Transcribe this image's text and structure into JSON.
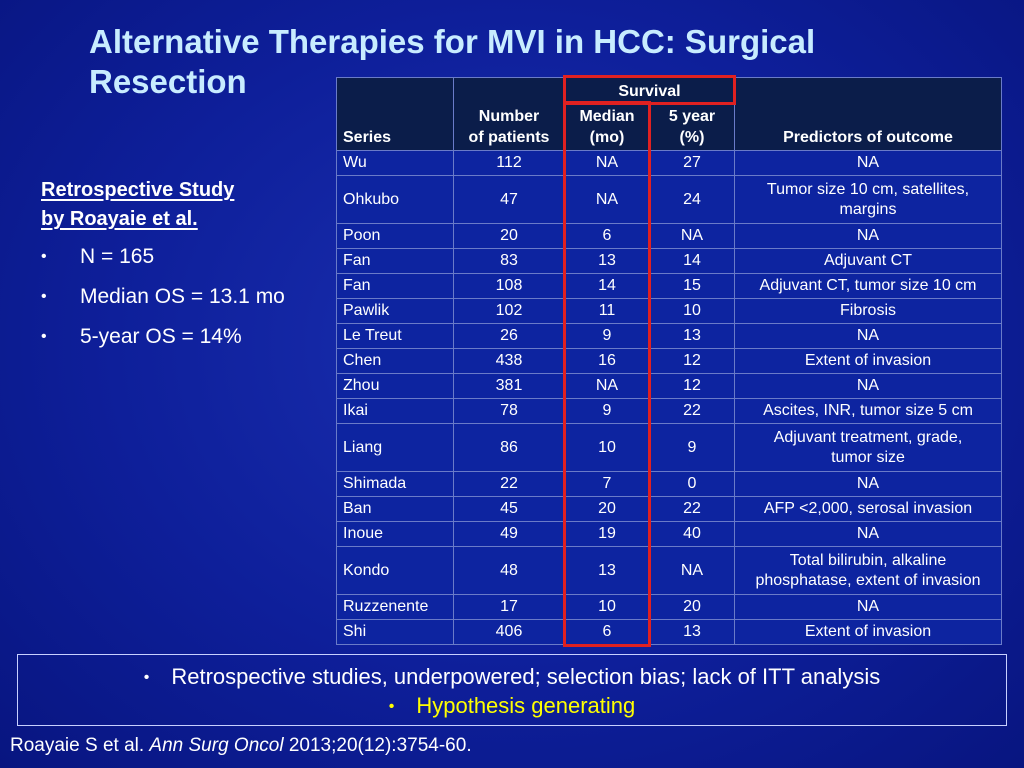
{
  "title": "Alternative Therapies for MVI in HCC: Surgical Resection",
  "study": {
    "heading_line1": "Retrospective Study",
    "heading_line2": "by Roayaie et al.",
    "bullets": [
      "N = 165",
      "Median OS = 13.1 mo",
      "5-year OS = 14%"
    ]
  },
  "table": {
    "headers": {
      "series": "Series",
      "patients_line1": "Number",
      "patients_line2": "of patients",
      "survival": "Survival",
      "median_line1": "Median",
      "median_line2": "(mo)",
      "five_year_line1": "5 year",
      "five_year_line2": "(%)",
      "predictors": "Predictors of outcome"
    },
    "rows": [
      {
        "series": "Wu",
        "patients": "112",
        "median": "NA",
        "five_year": "27",
        "pred1": "NA",
        "pred2": ""
      },
      {
        "series": "Ohkubo",
        "patients": "47",
        "median": "NA",
        "five_year": "24",
        "pred1": "Tumor size 10 cm, satellites,",
        "pred2": "margins"
      },
      {
        "series": "Poon",
        "patients": "20",
        "median": "6",
        "five_year": "NA",
        "pred1": "NA",
        "pred2": ""
      },
      {
        "series": "Fan",
        "patients": "83",
        "median": "13",
        "five_year": "14",
        "pred1": "Adjuvant CT",
        "pred2": ""
      },
      {
        "series": "Fan",
        "patients": "108",
        "median": "14",
        "five_year": "15",
        "pred1": "Adjuvant CT, tumor size 10 cm",
        "pred2": ""
      },
      {
        "series": "Pawlik",
        "patients": "102",
        "median": "11",
        "five_year": "10",
        "pred1": "Fibrosis",
        "pred2": ""
      },
      {
        "series": "Le Treut",
        "patients": "26",
        "median": "9",
        "five_year": "13",
        "pred1": "NA",
        "pred2": ""
      },
      {
        "series": "Chen",
        "patients": "438",
        "median": "16",
        "five_year": "12",
        "pred1": "Extent of invasion",
        "pred2": ""
      },
      {
        "series": "Zhou",
        "patients": "381",
        "median": "NA",
        "five_year": "12",
        "pred1": "NA",
        "pred2": ""
      },
      {
        "series": "Ikai",
        "patients": "78",
        "median": "9",
        "five_year": "22",
        "pred1": "Ascites, INR, tumor size 5 cm",
        "pred2": ""
      },
      {
        "series": "Liang",
        "patients": "86",
        "median": "10",
        "five_year": "9",
        "pred1": "Adjuvant treatment, grade,",
        "pred2": "tumor size"
      },
      {
        "series": "Shimada",
        "patients": "22",
        "median": "7",
        "five_year": "0",
        "pred1": "NA",
        "pred2": ""
      },
      {
        "series": "Ban",
        "patients": "45",
        "median": "20",
        "five_year": "22",
        "pred1": "AFP <2,000, serosal invasion",
        "pred2": ""
      },
      {
        "series": "Inoue",
        "patients": "49",
        "median": "19",
        "five_year": "40",
        "pred1": "NA",
        "pred2": ""
      },
      {
        "series": "Kondo",
        "patients": "48",
        "median": "13",
        "five_year": "NA",
        "pred1": "Total bilirubin, alkaline",
        "pred2": "phosphatase, extent of invasion"
      },
      {
        "series": "Ruzzenente",
        "patients": "17",
        "median": "10",
        "five_year": "20",
        "pred1": "NA",
        "pred2": ""
      },
      {
        "series": "Shi",
        "patients": "406",
        "median": "6",
        "five_year": "13",
        "pred1": "Extent of invasion",
        "pred2": ""
      }
    ]
  },
  "notes": {
    "line1": "Retrospective studies, underpowered; selection bias; lack of ITT analysis",
    "line2": "Hypothesis generating",
    "bullet_glyph": "•"
  },
  "citation": {
    "authors": "Roayaie S et al.",
    "journal": "Ann Surg Oncol",
    "details": "2013;20(12):3754-60."
  },
  "colors": {
    "background": "#0e1f9a",
    "title": "#c8ecff",
    "highlight": "#e02121",
    "emphasis": "#ffff00"
  }
}
